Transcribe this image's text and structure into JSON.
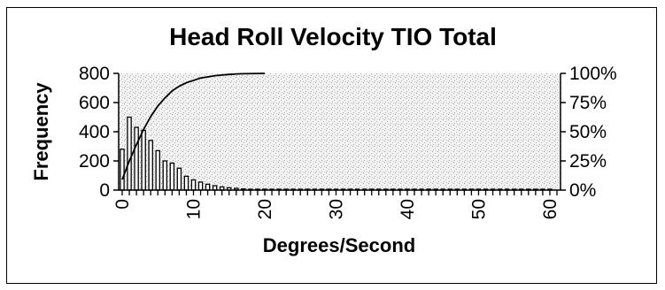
{
  "chart_data": {
    "type": "bar",
    "title": "Head Roll Velocity TIO Total",
    "xlabel": "Degrees/Second",
    "ylabel": "Frequency",
    "y2label": "",
    "xlim": [
      0,
      61
    ],
    "ylim": [
      0,
      800
    ],
    "y2lim": [
      0,
      100
    ],
    "x_ticks": [
      0,
      10,
      20,
      30,
      40,
      50,
      60
    ],
    "y_ticks": [
      0,
      200,
      400,
      600,
      800
    ],
    "y2_ticks": [
      "0%",
      "25%",
      "50%",
      "75%",
      "100%"
    ],
    "grid": false,
    "legend": "none",
    "plot_background": "stippled gray",
    "bar_color": "#000000",
    "line_color": "#000000",
    "series": [
      {
        "type": "bar",
        "axis": "left",
        "x": [
          0,
          1,
          2,
          3,
          4,
          5,
          6,
          7,
          8,
          9,
          10,
          11,
          12,
          13,
          14,
          15,
          16,
          17,
          18,
          19,
          20,
          21,
          22,
          23,
          24,
          25,
          26,
          27,
          28,
          29,
          30,
          31,
          32,
          33,
          34,
          35,
          36,
          37,
          38,
          39,
          40,
          41,
          42,
          43,
          44,
          45,
          46,
          47,
          48,
          49,
          50,
          51,
          52,
          53,
          54,
          55,
          56,
          57,
          58,
          59,
          60
        ],
        "values": [
          280,
          500,
          430,
          410,
          340,
          270,
          200,
          185,
          150,
          95,
          70,
          55,
          40,
          30,
          22,
          16,
          12,
          8,
          6,
          4,
          3,
          2,
          2,
          1,
          1,
          1,
          1,
          1,
          1,
          1,
          1,
          1,
          1,
          1,
          1,
          1,
          1,
          1,
          1,
          1,
          1,
          1,
          1,
          1,
          1,
          1,
          1,
          1,
          1,
          1,
          1,
          1,
          1,
          1,
          1,
          1,
          1,
          1,
          1,
          1,
          1
        ]
      },
      {
        "type": "line",
        "axis": "right",
        "x": [
          0,
          1,
          2,
          3,
          4,
          5,
          6,
          7,
          8,
          9,
          10,
          11,
          12,
          13,
          14,
          15,
          16,
          17,
          18,
          19,
          20
        ],
        "values": [
          9,
          25,
          39,
          52,
          63,
          72,
          79,
          85,
          89,
          92,
          94,
          96,
          97,
          98,
          98.6,
          99.1,
          99.5,
          99.7,
          99.8,
          99.9,
          100
        ]
      }
    ]
  }
}
